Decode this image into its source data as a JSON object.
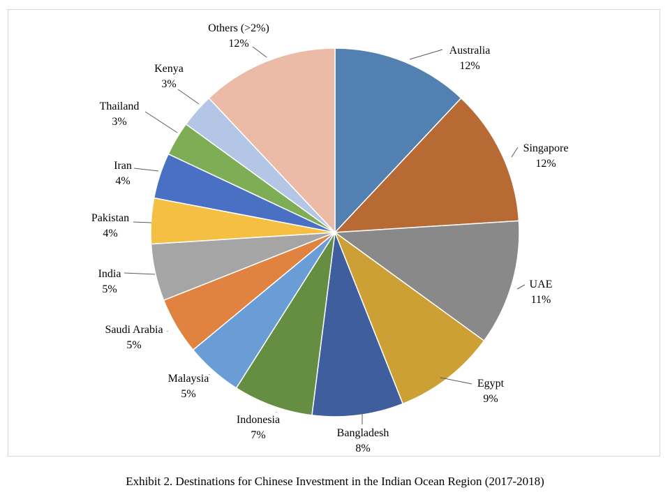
{
  "chart_data": {
    "type": "pie",
    "title": "",
    "slices": [
      {
        "label": "Australia",
        "value": 12,
        "value_label": "12%",
        "color": "#5280B0"
      },
      {
        "label": "Singapore",
        "value": 12,
        "value_label": "12%",
        "color": "#B86A35"
      },
      {
        "label": "UAE",
        "value": 11,
        "value_label": "11%",
        "color": "#898989"
      },
      {
        "label": "Egypt",
        "value": 9,
        "value_label": "9%",
        "color": "#CCA035"
      },
      {
        "label": "Bangladesh",
        "value": 8,
        "value_label": "8%",
        "color": "#3F5E9E"
      },
      {
        "label": "Indonesia",
        "value": 7,
        "value_label": "7%",
        "color": "#668E43"
      },
      {
        "label": "Malaysia",
        "value": 5,
        "value_label": "5%",
        "color": "#6A9DD6"
      },
      {
        "label": "Saudi Arabia",
        "value": 5,
        "value_label": "5%",
        "color": "#E08340"
      },
      {
        "label": "India",
        "value": 5,
        "value_label": "5%",
        "color": "#A5A5A5"
      },
      {
        "label": "Pakistan",
        "value": 4,
        "value_label": "4%",
        "color": "#F5BF43"
      },
      {
        "label": "Iran",
        "value": 4,
        "value_label": "4%",
        "color": "#4A70C4"
      },
      {
        "label": "Thailand",
        "value": 3,
        "value_label": "3%",
        "color": "#7DAE55"
      },
      {
        "label": "Kenya",
        "value": 3,
        "value_label": "3%",
        "color": "#B3C6E6"
      },
      {
        "label": "Others (>2%)",
        "value": 12,
        "value_label": "12%",
        "color": "#EBBBA8"
      }
    ]
  },
  "caption": "Exhibit 2. Destinations for Chinese Investment in the Indian Ocean Region (2017-2018)"
}
